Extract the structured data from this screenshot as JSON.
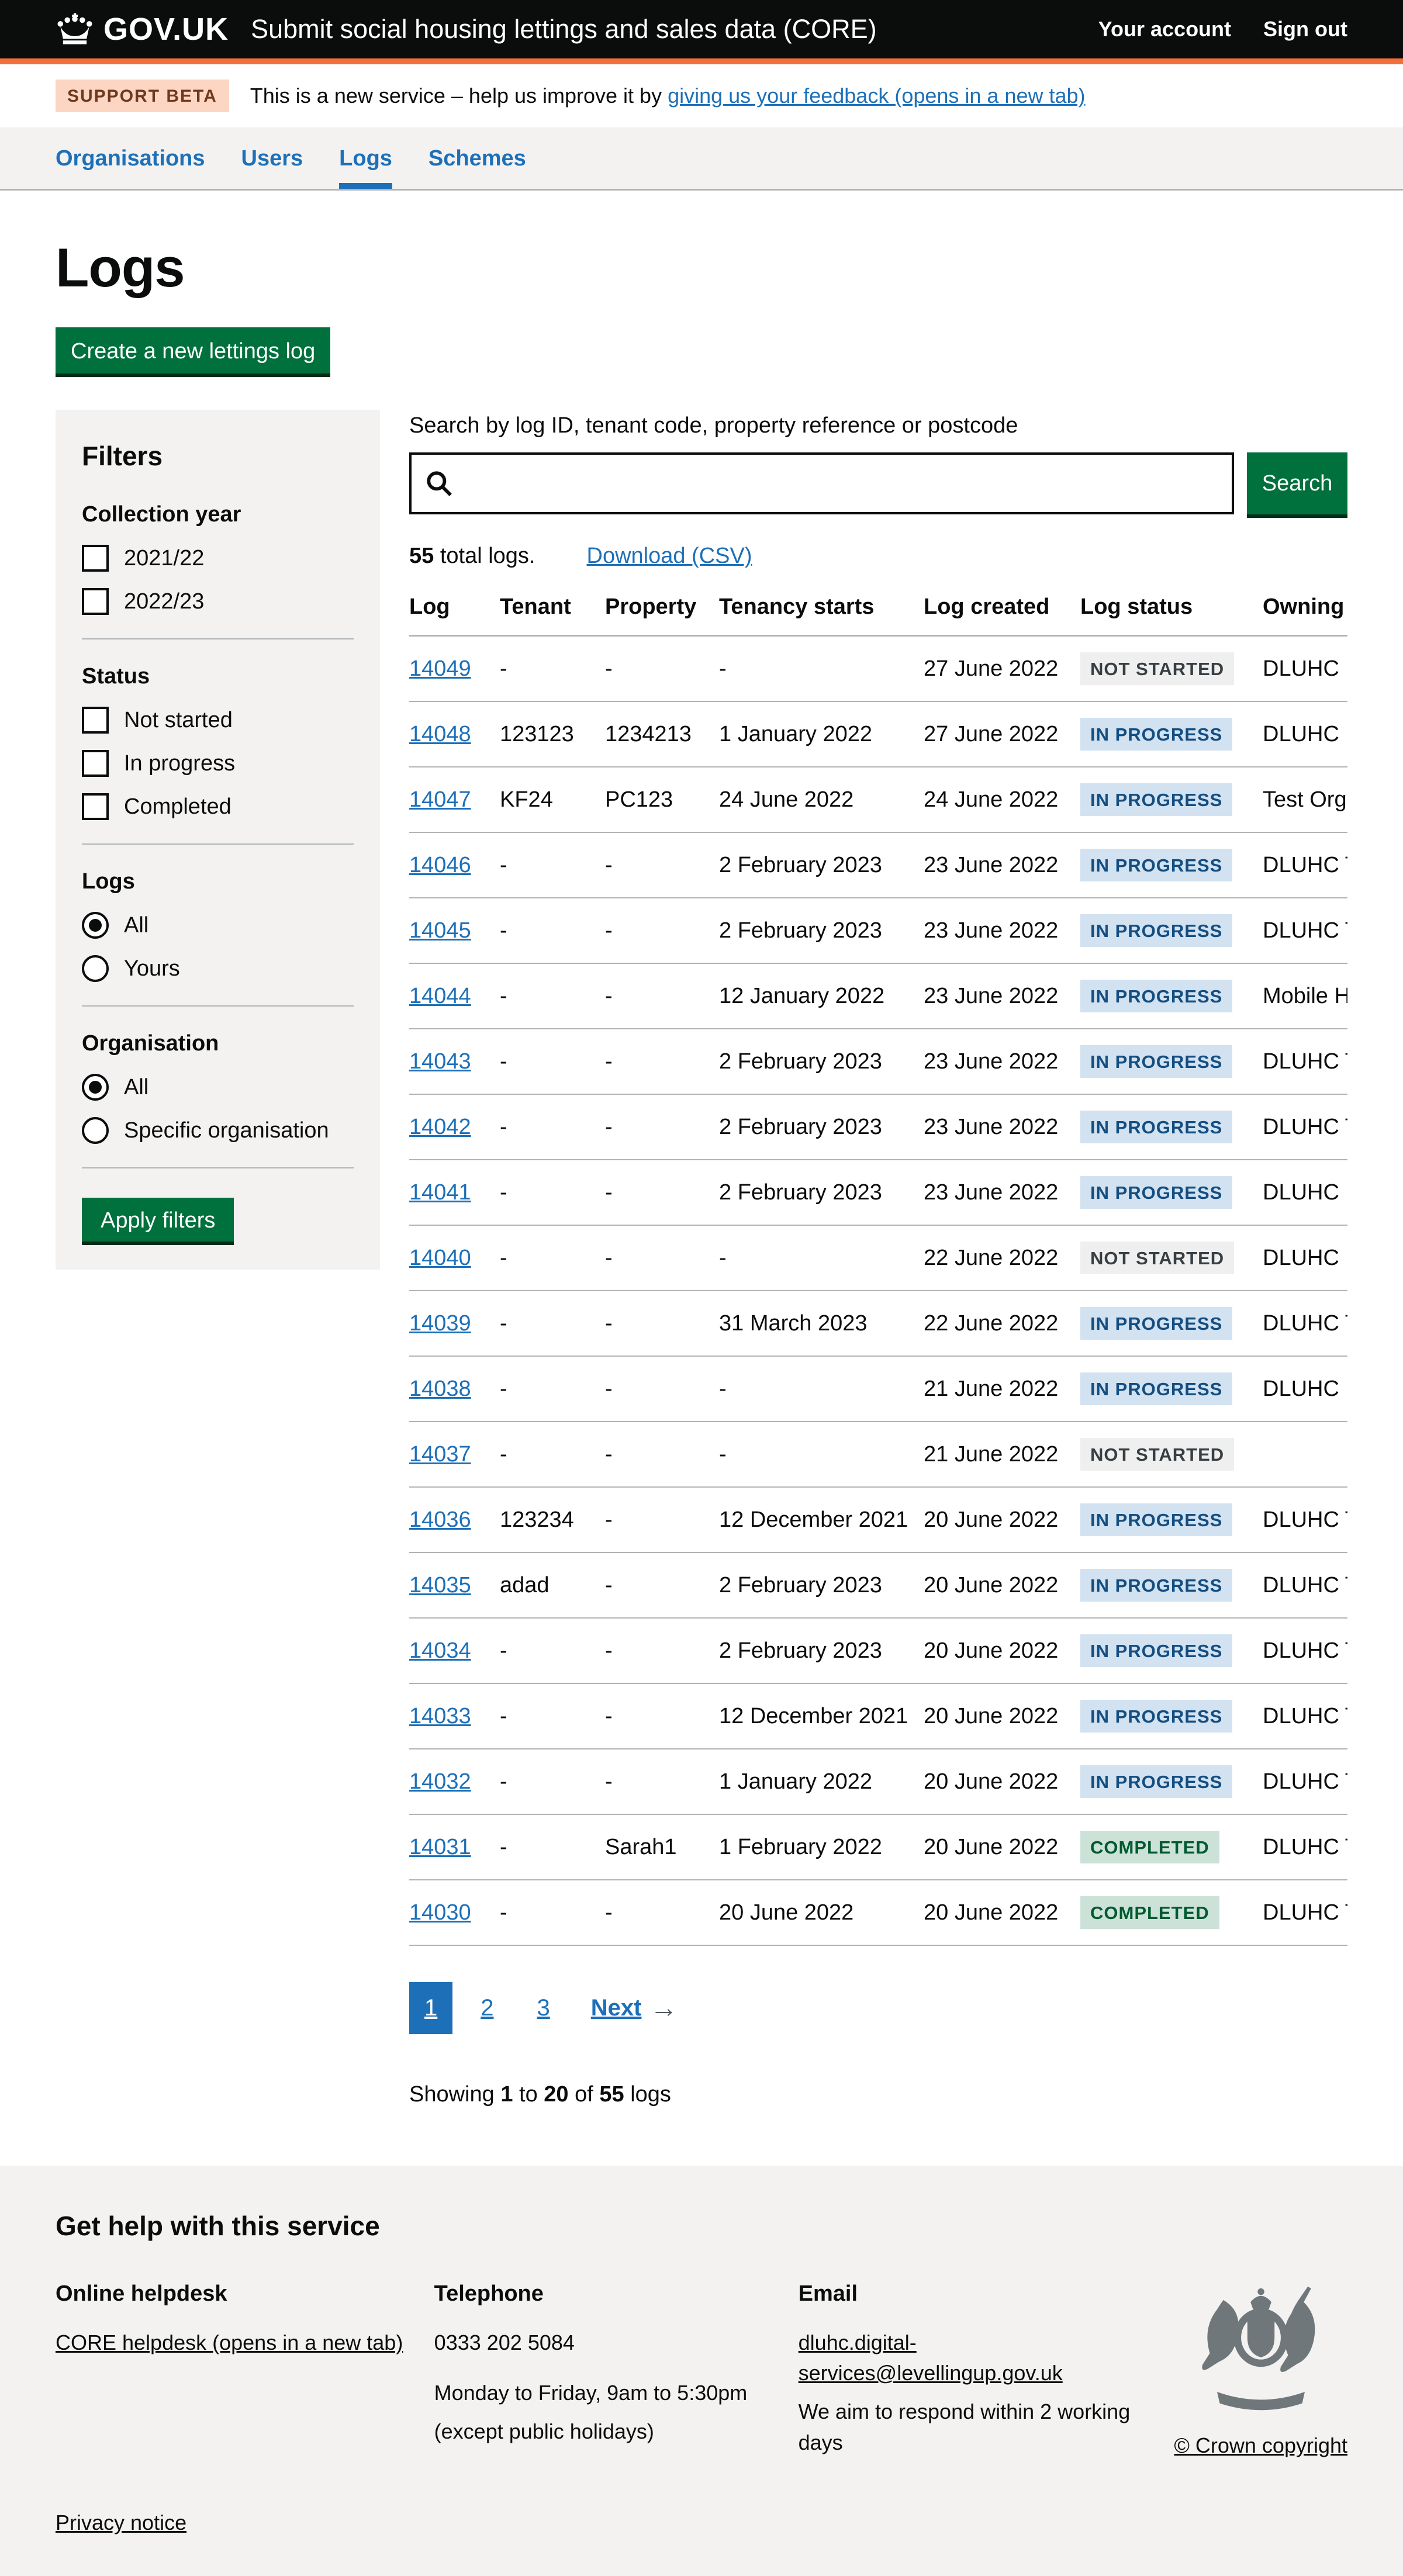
{
  "colors": {
    "header_bg": "#0b0c0c",
    "accent_orange": "#f4703a",
    "link_blue": "#1d70b8",
    "button_green": "#00703c",
    "panel_grey": "#f3f2f1",
    "border_grey": "#b1b4b6",
    "beta_tag_bg": "#fcd6c3",
    "beta_tag_text": "#6e3a1f",
    "status_grey_bg": "#eeefee",
    "status_grey_text": "#383f43",
    "status_blue_bg": "#d2e2f1",
    "status_blue_text": "#144e81",
    "status_green_bg": "#cce2d8",
    "status_green_text": "#005a30"
  },
  "header": {
    "logo_text": "GOV.UK",
    "service_name": "Submit social housing lettings and sales data (CORE)",
    "links": [
      {
        "label": "Your account"
      },
      {
        "label": "Sign out"
      }
    ]
  },
  "phase_banner": {
    "tag": "SUPPORT BETA",
    "text_before": "This is a new service – help us improve it by ",
    "link": "giving us your feedback (opens in a new tab)"
  },
  "primary_nav": {
    "items": [
      {
        "label": "Organisations",
        "active": false
      },
      {
        "label": "Users",
        "active": false
      },
      {
        "label": "Logs",
        "active": true
      },
      {
        "label": "Schemes",
        "active": false
      }
    ]
  },
  "page": {
    "title": "Logs",
    "create_button": "Create a new lettings log"
  },
  "filters": {
    "title": "Filters",
    "apply_button": "Apply filters",
    "sections": [
      {
        "heading": "Collection year",
        "type": "checkbox",
        "options": [
          {
            "label": "2021/22",
            "checked": false
          },
          {
            "label": "2022/23",
            "checked": false
          }
        ]
      },
      {
        "heading": "Status",
        "type": "checkbox",
        "options": [
          {
            "label": "Not started",
            "checked": false
          },
          {
            "label": "In progress",
            "checked": false
          },
          {
            "label": "Completed",
            "checked": false
          }
        ]
      },
      {
        "heading": "Logs",
        "type": "radio",
        "options": [
          {
            "label": "All",
            "selected": true
          },
          {
            "label": "Yours",
            "selected": false
          }
        ]
      },
      {
        "heading": "Organisation",
        "type": "radio",
        "options": [
          {
            "label": "All",
            "selected": true
          },
          {
            "label": "Specific organisation",
            "selected": false
          }
        ]
      }
    ]
  },
  "search": {
    "label": "Search by log ID, tenant code, property reference or postcode",
    "value": "",
    "button": "Search"
  },
  "results": {
    "total_bold": "55",
    "total_rest": " total logs.",
    "download_link": "Download (CSV)",
    "table": {
      "columns": [
        "Log",
        "Tenant",
        "Property",
        "Tenancy starts",
        "Log created",
        "Log status",
        "Owning organisation"
      ],
      "rows": [
        {
          "log": "14049",
          "tenant": "-",
          "property": "-",
          "tenancy_starts": "-",
          "log_created": "27 June 2022",
          "status": "NOT STARTED",
          "status_type": "grey",
          "owning": "DLUHC"
        },
        {
          "log": "14048",
          "tenant": "123123",
          "property": "1234213",
          "tenancy_starts": "1 January 2022",
          "log_created": "27 June 2022",
          "status": "IN PROGRESS",
          "status_type": "blue",
          "owning": "DLUHC"
        },
        {
          "log": "14047",
          "tenant": "KF24",
          "property": "PC123",
          "tenancy_starts": "24 June 2022",
          "log_created": "24 June 2022",
          "status": "IN PROGRESS",
          "status_type": "blue",
          "owning": "Test Organis"
        },
        {
          "log": "14046",
          "tenant": "-",
          "property": "-",
          "tenancy_starts": "2 February 2023",
          "log_created": "23 June 2022",
          "status": "IN PROGRESS",
          "status_type": "blue",
          "owning": "DLUHC Tes"
        },
        {
          "log": "14045",
          "tenant": "-",
          "property": "-",
          "tenancy_starts": "2 February 2023",
          "log_created": "23 June 2022",
          "status": "IN PROGRESS",
          "status_type": "blue",
          "owning": "DLUHC Tes"
        },
        {
          "log": "14044",
          "tenant": "-",
          "property": "-",
          "tenancy_starts": "12 January 2022",
          "log_created": "23 June 2022",
          "status": "IN PROGRESS",
          "status_type": "blue",
          "owning": "Mobile Hou"
        },
        {
          "log": "14043",
          "tenant": "-",
          "property": "-",
          "tenancy_starts": "2 February 2023",
          "log_created": "23 June 2022",
          "status": "IN PROGRESS",
          "status_type": "blue",
          "owning": "DLUHC Tes"
        },
        {
          "log": "14042",
          "tenant": "-",
          "property": "-",
          "tenancy_starts": "2 February 2023",
          "log_created": "23 June 2022",
          "status": "IN PROGRESS",
          "status_type": "blue",
          "owning": "DLUHC Tes"
        },
        {
          "log": "14041",
          "tenant": "-",
          "property": "-",
          "tenancy_starts": "2 February 2023",
          "log_created": "23 June 2022",
          "status": "IN PROGRESS",
          "status_type": "blue",
          "owning": "DLUHC"
        },
        {
          "log": "14040",
          "tenant": "-",
          "property": "-",
          "tenancy_starts": "-",
          "log_created": "22 June 2022",
          "status": "NOT STARTED",
          "status_type": "grey",
          "owning": "DLUHC"
        },
        {
          "log": "14039",
          "tenant": "-",
          "property": "-",
          "tenancy_starts": "31 March 2023",
          "log_created": "22 June 2022",
          "status": "IN PROGRESS",
          "status_type": "blue",
          "owning": "DLUHC Tes"
        },
        {
          "log": "14038",
          "tenant": "-",
          "property": "-",
          "tenancy_starts": "-",
          "log_created": "21 June 2022",
          "status": "IN PROGRESS",
          "status_type": "blue",
          "owning": "DLUHC"
        },
        {
          "log": "14037",
          "tenant": "-",
          "property": "-",
          "tenancy_starts": "-",
          "log_created": "21 June 2022",
          "status": "NOT STARTED",
          "status_type": "grey",
          "owning": ""
        },
        {
          "log": "14036",
          "tenant": "123234",
          "property": "-",
          "tenancy_starts": "12 December 2021",
          "log_created": "20 June 2022",
          "status": "IN PROGRESS",
          "status_type": "blue",
          "owning": "DLUHC Tes"
        },
        {
          "log": "14035",
          "tenant": "adad",
          "property": "-",
          "tenancy_starts": "2 February 2023",
          "log_created": "20 June 2022",
          "status": "IN PROGRESS",
          "status_type": "blue",
          "owning": "DLUHC Tes"
        },
        {
          "log": "14034",
          "tenant": "-",
          "property": "-",
          "tenancy_starts": "2 February 2023",
          "log_created": "20 June 2022",
          "status": "IN PROGRESS",
          "status_type": "blue",
          "owning": "DLUHC Tes"
        },
        {
          "log": "14033",
          "tenant": "-",
          "property": "-",
          "tenancy_starts": "12 December 2021",
          "log_created": "20 June 2022",
          "status": "IN PROGRESS",
          "status_type": "blue",
          "owning": "DLUHC Tes"
        },
        {
          "log": "14032",
          "tenant": "-",
          "property": "-",
          "tenancy_starts": "1 January 2022",
          "log_created": "20 June 2022",
          "status": "IN PROGRESS",
          "status_type": "blue",
          "owning": "DLUHC Tes"
        },
        {
          "log": "14031",
          "tenant": "-",
          "property": "Sarah1",
          "tenancy_starts": "1 February 2022",
          "log_created": "20 June 2022",
          "status": "COMPLETED",
          "status_type": "green",
          "owning": "DLUHC Tes"
        },
        {
          "log": "14030",
          "tenant": "-",
          "property": "-",
          "tenancy_starts": "20 June 2022",
          "log_created": "20 June 2022",
          "status": "COMPLETED",
          "status_type": "green",
          "owning": "DLUHC Tes"
        }
      ]
    },
    "pagination": {
      "pages": [
        {
          "label": "1",
          "active": true
        },
        {
          "label": "2",
          "active": false
        },
        {
          "label": "3",
          "active": false
        }
      ],
      "next_label": "Next",
      "arrow": "→"
    },
    "showing": {
      "prefix": "Showing ",
      "from": "1",
      "to_word": " to ",
      "to": "20",
      "of_word": " of ",
      "total": "55",
      "suffix": " logs"
    }
  },
  "footer": {
    "title": "Get help with this service",
    "helpdesk_heading": "Online helpdesk",
    "helpdesk_link": "CORE helpdesk (opens in a new tab)",
    "telephone_heading": "Telephone",
    "telephone_number": "0333 202 5084",
    "telephone_hours_1": "Monday to Friday, 9am to 5:30pm",
    "telephone_hours_2": "(except public holidays)",
    "email_heading": "Email",
    "email_link": "dluhc.digital-services@levellingup.gov.uk",
    "email_note": "We aim to respond within 2 working days",
    "copyright": "© Crown copyright",
    "privacy_link": "Privacy notice"
  }
}
